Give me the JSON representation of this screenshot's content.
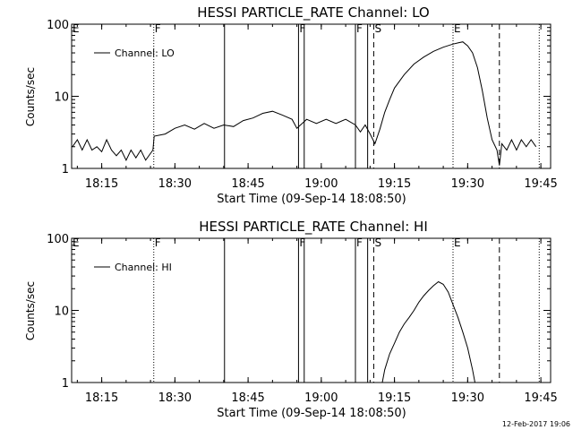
{
  "footer": {
    "date_stamp": "12-Feb-2017 19:06"
  },
  "chart_data": [
    {
      "type": "line",
      "title": "HESSI PARTICLE_RATE Channel: LO",
      "xlabel": "Start Time (09-Sep-14 18:08:50)",
      "ylabel": "Counts/sec",
      "yscale": "log",
      "ylim": [
        1,
        100
      ],
      "ytick_labels": [
        "1",
        "10",
        "100"
      ],
      "xlim": [
        "18:08:50",
        "19:47:00"
      ],
      "xtick_labels": [
        "18:15",
        "18:30",
        "18:45",
        "19:00",
        "19:15",
        "19:30",
        "19:45"
      ],
      "legend": {
        "entries": [
          "Channel: LO"
        ],
        "placement": "top-left"
      },
      "grid": false,
      "markers": [
        {
          "time": "18:08:50",
          "label": "E",
          "style": "none"
        },
        {
          "time": "18:25:40",
          "label": "F",
          "style": "dotted"
        },
        {
          "time": "18:40:10",
          "label": "",
          "style": "solid"
        },
        {
          "time": "18:55:20",
          "label": "F",
          "style": "solid"
        },
        {
          "time": "18:56:30",
          "label": "",
          "style": "solid"
        },
        {
          "time": "19:07:00",
          "label": "F",
          "style": "solid"
        },
        {
          "time": "19:09:30",
          "label": "",
          "style": "solid"
        },
        {
          "time": "19:10:45",
          "label": "S",
          "style": "dashed"
        },
        {
          "time": "19:27:00",
          "label": "E",
          "style": "dotted"
        },
        {
          "time": "19:36:30",
          "label": "",
          "style": "dashed"
        },
        {
          "time": "19:44:40",
          "label": "",
          "style": "dotted"
        }
      ],
      "series": [
        {
          "values": [
            [
              "18:09:00",
              2
            ],
            [
              "18:10:00",
              2.5
            ],
            [
              "18:11:00",
              1.8
            ],
            [
              "18:12:00",
              2.5
            ],
            [
              "18:13:00",
              1.8
            ],
            [
              "18:14:00",
              2
            ],
            [
              "18:15:00",
              1.7
            ],
            [
              "18:16:00",
              2.5
            ],
            [
              "18:17:00",
              1.8
            ],
            [
              "18:18:00",
              1.5
            ],
            [
              "18:19:00",
              1.8
            ],
            [
              "18:20:00",
              1.3
            ],
            [
              "18:21:00",
              1.8
            ],
            [
              "18:22:00",
              1.4
            ],
            [
              "18:23:00",
              1.8
            ],
            [
              "18:24:00",
              1.3
            ],
            [
              "18:25:30",
              1.8
            ],
            [
              "18:25:45",
              2.8
            ],
            [
              "18:28:00",
              3
            ],
            [
              "18:30:00",
              3.6
            ],
            [
              "18:32:00",
              4
            ],
            [
              "18:34:00",
              3.5
            ],
            [
              "18:36:00",
              4.2
            ],
            [
              "18:38:00",
              3.6
            ],
            [
              "18:40:00",
              4
            ],
            [
              "18:42:00",
              3.8
            ],
            [
              "18:44:00",
              4.6
            ],
            [
              "18:46:00",
              5
            ],
            [
              "18:48:00",
              5.8
            ],
            [
              "18:50:00",
              6.2
            ],
            [
              "18:52:00",
              5.5
            ],
            [
              "18:54:00",
              4.8
            ],
            [
              "18:55:00",
              3.6
            ],
            [
              "18:57:00",
              4.8
            ],
            [
              "18:59:00",
              4.2
            ],
            [
              "19:01:00",
              4.8
            ],
            [
              "19:03:00",
              4.2
            ],
            [
              "19:05:00",
              4.8
            ],
            [
              "19:07:00",
              4
            ],
            [
              "19:08:00",
              3.2
            ],
            [
              "19:09:00",
              4
            ],
            [
              "19:10:00",
              3
            ],
            [
              "19:11:00",
              2.2
            ],
            [
              "19:12:00",
              3.5
            ],
            [
              "19:13:00",
              6
            ],
            [
              "19:14:00",
              9
            ],
            [
              "19:15:00",
              13
            ],
            [
              "19:17:00",
              20
            ],
            [
              "19:19:00",
              28
            ],
            [
              "19:21:00",
              35
            ],
            [
              "19:23:00",
              42
            ],
            [
              "19:25:00",
              48
            ],
            [
              "19:27:00",
              53
            ],
            [
              "19:28:00",
              55
            ],
            [
              "19:29:00",
              57
            ],
            [
              "19:30:00",
              50
            ],
            [
              "19:31:00",
              40
            ],
            [
              "19:32:00",
              25
            ],
            [
              "19:33:00",
              12
            ],
            [
              "19:34:00",
              5
            ],
            [
              "19:35:00",
              2.5
            ],
            [
              "19:36:00",
              1.8
            ],
            [
              "19:36:30",
              1.1
            ],
            [
              "19:37:00",
              2.2
            ],
            [
              "19:38:00",
              1.8
            ],
            [
              "19:39:00",
              2.5
            ],
            [
              "19:40:00",
              1.8
            ],
            [
              "19:41:00",
              2.5
            ],
            [
              "19:42:00",
              2
            ],
            [
              "19:43:00",
              2.5
            ],
            [
              "19:44:00",
              2
            ]
          ]
        }
      ]
    },
    {
      "type": "line",
      "title": "HESSI PARTICLE_RATE Channel: HI",
      "xlabel": "Start Time (09-Sep-14 18:08:50)",
      "ylabel": "Counts/sec",
      "yscale": "log",
      "ylim": [
        1,
        100
      ],
      "ytick_labels": [
        "1",
        "10",
        "100"
      ],
      "xlim": [
        "18:08:50",
        "19:47:00"
      ],
      "xtick_labels": [
        "18:15",
        "18:30",
        "18:45",
        "19:00",
        "19:15",
        "19:30",
        "19:45"
      ],
      "legend": {
        "entries": [
          "Channel: HI"
        ],
        "placement": "top-left"
      },
      "grid": false,
      "markers": [
        {
          "time": "18:08:50",
          "label": "E",
          "style": "none"
        },
        {
          "time": "18:25:40",
          "label": "F",
          "style": "dotted"
        },
        {
          "time": "18:40:10",
          "label": "",
          "style": "solid"
        },
        {
          "time": "18:55:20",
          "label": "F",
          "style": "solid"
        },
        {
          "time": "18:56:30",
          "label": "",
          "style": "solid"
        },
        {
          "time": "19:07:00",
          "label": "F",
          "style": "solid"
        },
        {
          "time": "19:09:30",
          "label": "",
          "style": "solid"
        },
        {
          "time": "19:10:45",
          "label": "S",
          "style": "dashed"
        },
        {
          "time": "19:27:00",
          "label": "E",
          "style": "dotted"
        },
        {
          "time": "19:36:30",
          "label": "",
          "style": "dashed"
        },
        {
          "time": "19:44:40",
          "label": "",
          "style": "dotted"
        }
      ],
      "series": [
        {
          "values": [
            [
              "19:12:30",
              1
            ],
            [
              "19:13:00",
              1.5
            ],
            [
              "19:14:00",
              2.5
            ],
            [
              "19:15:00",
              3.5
            ],
            [
              "19:16:00",
              5
            ],
            [
              "19:17:00",
              6.5
            ],
            [
              "19:18:00",
              8
            ],
            [
              "19:19:00",
              10
            ],
            [
              "19:20:00",
              13
            ],
            [
              "19:21:00",
              16
            ],
            [
              "19:22:00",
              19
            ],
            [
              "19:23:00",
              22
            ],
            [
              "19:24:00",
              25
            ],
            [
              "19:25:00",
              23
            ],
            [
              "19:26:00",
              18
            ],
            [
              "19:27:00",
              12
            ],
            [
              "19:28:00",
              8
            ],
            [
              "19:29:00",
              5
            ],
            [
              "19:30:00",
              3
            ],
            [
              "19:31:00",
              1.5
            ],
            [
              "19:31:30",
              1
            ]
          ]
        }
      ]
    }
  ]
}
